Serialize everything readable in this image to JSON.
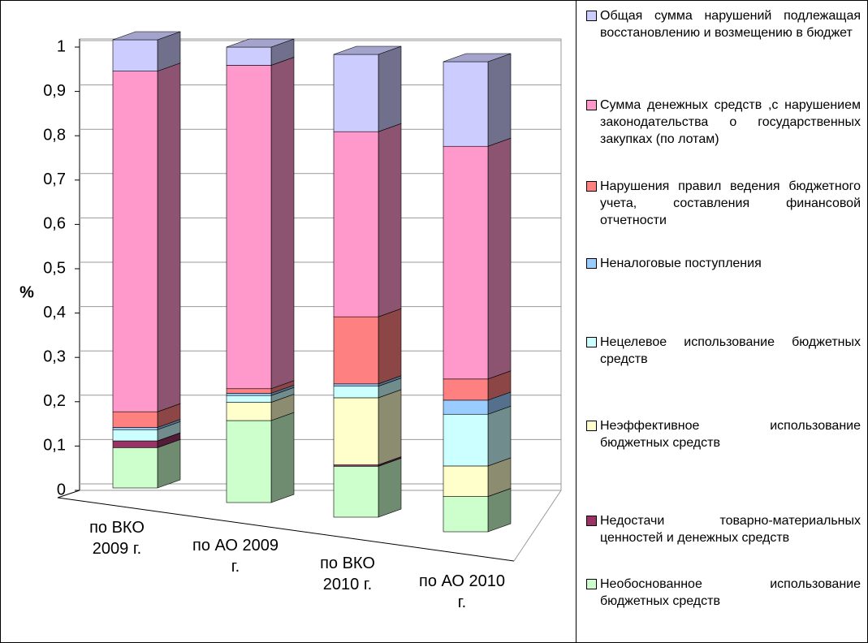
{
  "chart_data": {
    "type": "bar3d_stacked",
    "y_label": "%",
    "categories": [
      "по ВКО 2009 г.",
      "по АО 2009 г.",
      "по ВКО 2010 г.",
      "по АО 2010 г."
    ],
    "ylim": [
      0,
      1
    ],
    "yticks": [
      0,
      {
        "value": 0.1,
        "label": "0,1"
      },
      {
        "value": 0.2,
        "label": "0,2"
      },
      {
        "value": 0.3,
        "label": "0,3"
      },
      {
        "value": 0.4,
        "label": "0,4"
      },
      {
        "value": 0.5,
        "label": "0,5"
      },
      {
        "value": 0.6,
        "label": "0,6"
      },
      {
        "value": 0.7,
        "label": "0,7"
      },
      {
        "value": 0.8,
        "label": "0,8"
      },
      {
        "value": 0.9,
        "label": "0,9"
      },
      1
    ],
    "grid": true,
    "series": [
      {
        "name": "Необоснованное использование бюджетных средств",
        "color": "#ccffcc",
        "values": [
          0.09,
          0.18,
          0.11,
          0.075
        ]
      },
      {
        "name": "Недостачи товарно-материальных ценностей и денежных средств",
        "color": "#993366",
        "values": [
          0.015,
          0,
          0.003,
          0
        ]
      },
      {
        "name": "Неэффективное использование бюджетных средств",
        "color": "#ffffcc",
        "values": [
          0,
          0.04,
          0.145,
          0.065
        ]
      },
      {
        "name": "Нецелевое использование бюджетных средств",
        "color": "#ccffff",
        "values": [
          0.025,
          0.015,
          0.025,
          0.11
        ]
      },
      {
        "name": "Неналоговые поступления",
        "color": "#99ccff",
        "values": [
          0.005,
          0.005,
          0.005,
          0.03
        ]
      },
      {
        "name": "Нарушения правил ведения бюджетного учета, составления финансовой отчетности",
        "color": "#ff8080",
        "values": [
          0.035,
          0.01,
          0.145,
          0.045
        ]
      },
      {
        "name": "Сумма денежных средств ,с нарушением законодательства о государственных закупках (по лотам)",
        "color": "#ff99cc",
        "values": [
          0.76,
          0.71,
          0.4,
          0.495
        ]
      },
      {
        "name": "Общая сумма нарушений подлежащая восстановлению и возмещению в бюджет",
        "color": "#ccccff",
        "values": [
          0.07,
          0.04,
          0.167,
          0.18
        ]
      }
    ]
  }
}
